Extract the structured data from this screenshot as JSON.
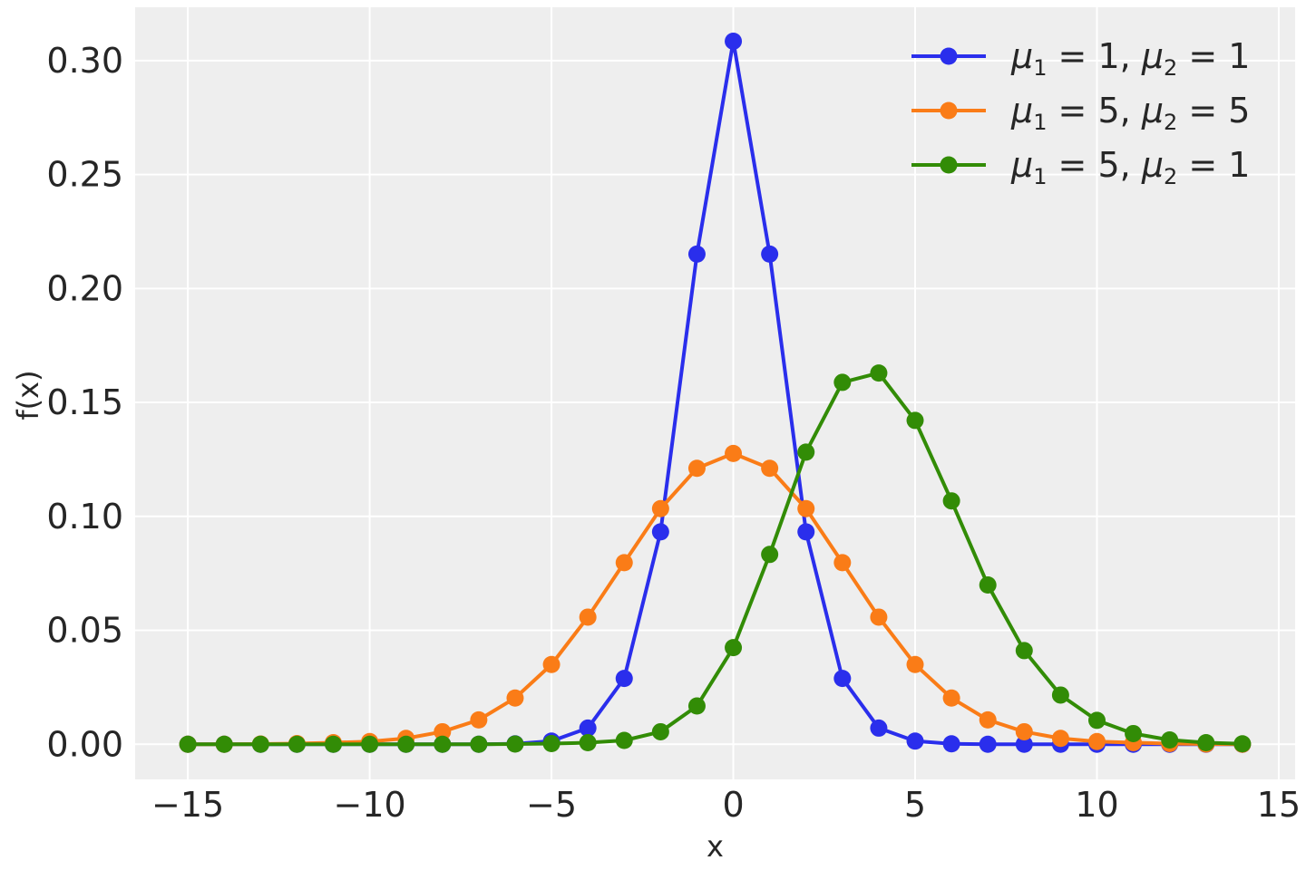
{
  "chart_data": {
    "type": "line",
    "title": "",
    "xlabel": "x",
    "ylabel": "f(x)",
    "xlim": [
      -16.45,
      15.45
    ],
    "ylim": [
      -0.0154,
      0.3234
    ],
    "xticks": [
      -15,
      -10,
      -5,
      0,
      5,
      10,
      15
    ],
    "xtick_labels": [
      "−15",
      "−10",
      "−5",
      "0",
      "5",
      "10",
      "15"
    ],
    "yticks": [
      0.0,
      0.05,
      0.1,
      0.15,
      0.2,
      0.25,
      0.3
    ],
    "ytick_labels": [
      "0.00",
      "0.05",
      "0.10",
      "0.15",
      "0.20",
      "0.25",
      "0.30"
    ],
    "grid": true,
    "legend_position": "top-right",
    "x": [
      -15,
      -14,
      -13,
      -12,
      -11,
      -10,
      -9,
      -8,
      -7,
      -6,
      -5,
      -4,
      -3,
      -2,
      -1,
      0,
      1,
      2,
      3,
      4,
      5,
      6,
      7,
      8,
      9,
      10,
      11,
      12,
      13,
      14
    ],
    "series": [
      {
        "name": "μ1 = 1, μ2 = 1",
        "color": "#2a2eec",
        "values": [
          0.0,
          0.0,
          0.0,
          0.0,
          0.0,
          0.0,
          0.0,
          0.0,
          0.0,
          0.0002,
          0.0014,
          0.0071,
          0.0289,
          0.0932,
          0.2151,
          0.3085,
          0.2151,
          0.0932,
          0.0289,
          0.0071,
          0.0014,
          0.0002,
          0.0,
          0.0,
          0.0,
          0.0,
          0.0,
          0.0,
          0.0,
          0.0
        ]
      },
      {
        "name": "μ1 = 5, μ2 = 5",
        "color": "#fa7c17",
        "values": [
          0.0,
          0.0,
          0.0001,
          0.0003,
          0.0007,
          0.0012,
          0.0026,
          0.0055,
          0.0107,
          0.0203,
          0.035,
          0.0558,
          0.0797,
          0.1034,
          0.1211,
          0.1276,
          0.1211,
          0.1034,
          0.0797,
          0.0558,
          0.035,
          0.0203,
          0.0107,
          0.0055,
          0.0026,
          0.0012,
          0.0007,
          0.0003,
          0.0001,
          0.0
        ]
      },
      {
        "name": "μ1 = 5, μ2 = 1",
        "color": "#328c06",
        "values": [
          0.0,
          0.0,
          0.0,
          0.0,
          0.0,
          0.0,
          0.0,
          0.0,
          0.0,
          0.0001,
          0.0003,
          0.0007,
          0.0017,
          0.0055,
          0.0168,
          0.0424,
          0.0833,
          0.1282,
          0.1588,
          0.1629,
          0.1421,
          0.1068,
          0.0699,
          0.0411,
          0.0216,
          0.0105,
          0.0047,
          0.0019,
          0.0007,
          0.0002
        ]
      }
    ]
  }
}
